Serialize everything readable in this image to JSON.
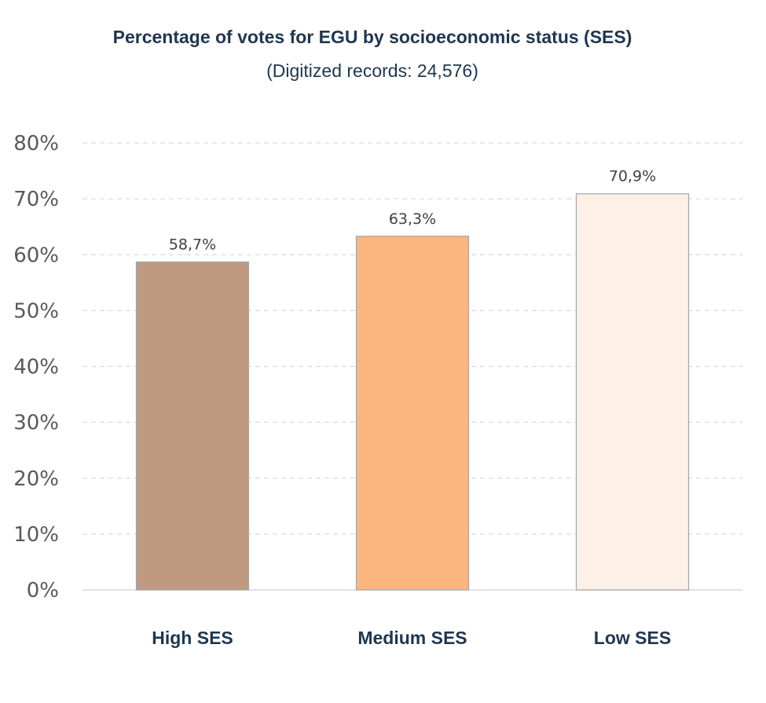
{
  "chart_data": {
    "type": "bar",
    "title": "Percentage of votes for EGU by socioeconomic status (SES)",
    "subtitle": "(Digitized records: 24,576)",
    "categories": [
      "High SES",
      "Medium SES",
      "Low SES"
    ],
    "values": [
      58.7,
      63.3,
      70.9
    ],
    "value_labels": [
      "58,7%",
      "63,3%",
      "70,9%"
    ],
    "colors": [
      "#bf9a80",
      "#fcb57e",
      "#fdf0e6"
    ],
    "y_ticks": [
      "0%",
      "10%",
      "20%",
      "30%",
      "40%",
      "50%",
      "60%",
      "70%",
      "80%"
    ],
    "ylim": [
      0,
      80
    ],
    "grid": true,
    "legend": "none"
  }
}
